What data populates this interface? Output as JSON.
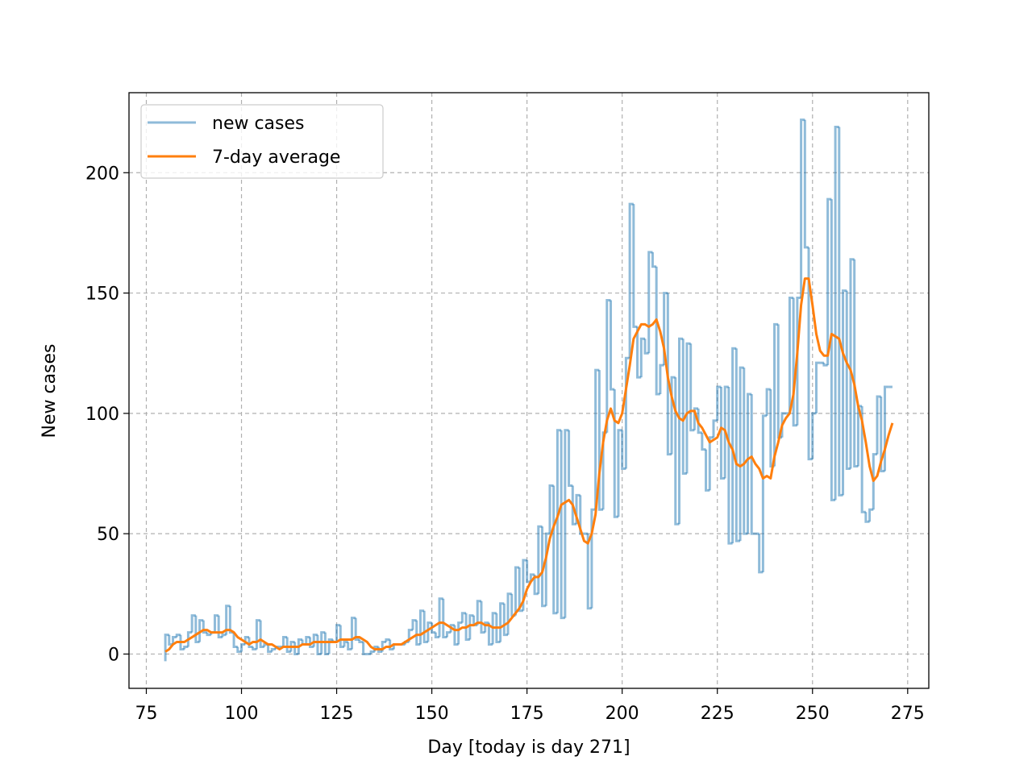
{
  "chart_data": {
    "type": "step-line",
    "xlabel": "Day [today is day 271]",
    "ylabel": "New cases",
    "x": [
      80,
      81,
      82,
      83,
      84,
      85,
      86,
      87,
      88,
      89,
      90,
      91,
      92,
      93,
      94,
      95,
      96,
      97,
      98,
      99,
      100,
      101,
      102,
      103,
      104,
      105,
      106,
      107,
      108,
      109,
      110,
      111,
      112,
      113,
      114,
      115,
      116,
      117,
      118,
      119,
      120,
      121,
      122,
      123,
      124,
      125,
      126,
      127,
      128,
      129,
      130,
      131,
      132,
      133,
      134,
      135,
      136,
      137,
      138,
      139,
      140,
      141,
      142,
      143,
      144,
      145,
      146,
      147,
      148,
      149,
      150,
      151,
      152,
      153,
      154,
      155,
      156,
      157,
      158,
      159,
      160,
      161,
      162,
      163,
      164,
      165,
      166,
      167,
      168,
      169,
      170,
      171,
      172,
      173,
      174,
      175,
      176,
      177,
      178,
      179,
      180,
      181,
      182,
      183,
      184,
      185,
      186,
      187,
      188,
      189,
      190,
      191,
      192,
      193,
      194,
      195,
      196,
      197,
      198,
      199,
      200,
      201,
      202,
      203,
      204,
      205,
      206,
      207,
      208,
      209,
      210,
      211,
      212,
      213,
      214,
      215,
      216,
      217,
      218,
      219,
      220,
      221,
      222,
      223,
      224,
      225,
      226,
      227,
      228,
      229,
      230,
      231,
      232,
      233,
      234,
      235,
      236,
      237,
      238,
      239,
      240,
      241,
      242,
      243,
      244,
      245,
      246,
      247,
      248,
      249,
      250,
      251,
      252,
      253,
      254,
      255,
      256,
      257,
      258,
      259,
      260,
      261,
      262,
      263,
      264,
      265,
      266,
      267,
      268,
      269,
      270,
      271
    ],
    "series": [
      {
        "name": "new cases",
        "color": "#1f77b4",
        "alpha": 0.5,
        "style": "step",
        "values": [
          -3,
          8,
          4,
          7,
          8,
          2,
          3,
          9,
          16,
          5,
          14,
          9,
          8,
          9,
          16,
          7,
          8,
          20,
          9,
          3,
          1,
          4,
          7,
          3,
          2,
          14,
          3,
          4,
          1,
          2,
          3,
          3,
          7,
          1,
          5,
          0,
          6,
          4,
          7,
          3,
          8,
          0,
          9,
          0,
          6,
          5,
          12,
          3,
          5,
          2,
          15,
          6,
          5,
          0,
          0,
          1,
          3,
          1,
          5,
          6,
          2,
          4,
          4,
          4,
          5,
          10,
          14,
          4,
          18,
          5,
          13,
          9,
          7,
          23,
          7,
          9,
          12,
          4,
          13,
          17,
          6,
          16,
          12,
          22,
          9,
          13,
          4,
          17,
          5,
          21,
          8,
          25,
          16,
          36,
          18,
          39,
          30,
          33,
          25,
          53,
          20,
          50,
          70,
          17,
          93,
          15,
          93,
          70,
          54,
          66,
          50,
          50,
          19,
          60,
          118,
          60,
          92,
          147,
          110,
          57,
          93,
          77,
          123,
          187,
          136,
          115,
          131,
          125,
          167,
          161,
          108,
          120,
          150,
          83,
          115,
          54,
          131,
          75,
          129,
          93,
          102,
          92,
          85,
          68,
          90,
          97,
          111,
          73,
          111,
          46,
          127,
          47,
          119,
          50,
          108,
          50,
          50,
          34,
          99,
          110,
          78,
          137,
          90,
          100,
          100,
          148,
          95,
          148,
          222,
          169,
          81,
          100,
          121,
          121,
          120,
          189,
          64,
          219,
          66,
          151,
          77,
          164,
          78,
          103,
          59,
          55,
          60,
          83,
          107,
          76,
          111,
          111
        ]
      },
      {
        "name": "7-day average",
        "color": "#ff7f0e",
        "alpha": 1,
        "style": "line",
        "values": [
          1,
          2,
          4,
          5,
          5,
          5,
          6,
          7,
          8,
          9,
          10,
          10,
          9,
          9,
          9,
          9,
          10,
          10,
          9,
          7,
          6,
          5,
          4,
          5,
          5,
          6,
          5,
          4,
          4,
          3,
          2,
          3,
          3,
          3,
          3,
          3,
          4,
          4,
          4,
          5,
          5,
          5,
          5,
          5,
          5,
          5,
          6,
          6,
          6,
          6,
          7,
          7,
          6,
          5,
          3,
          2,
          2,
          2,
          3,
          3,
          4,
          4,
          4,
          5,
          6,
          7,
          8,
          8,
          9,
          10,
          11,
          12,
          13,
          13,
          12,
          11,
          10,
          10,
          11,
          11,
          12,
          12,
          13,
          13,
          12,
          12,
          11,
          11,
          11,
          12,
          13,
          15,
          17,
          19,
          22,
          27,
          30,
          32,
          32,
          34,
          40,
          48,
          53,
          57,
          62,
          63,
          64,
          62,
          57,
          52,
          47,
          46,
          50,
          58,
          75,
          88,
          97,
          102,
          97,
          96,
          100,
          110,
          120,
          131,
          134,
          137,
          137,
          136,
          137,
          139,
          134,
          127,
          115,
          107,
          101,
          98,
          97,
          100,
          101,
          101,
          96,
          94,
          91,
          88,
          89,
          90,
          94,
          93,
          88,
          85,
          79,
          78,
          79,
          81,
          82,
          79,
          77,
          73,
          74,
          73,
          82,
          88,
          95,
          98,
          100,
          108,
          125,
          145,
          156,
          156,
          145,
          133,
          126,
          124,
          124,
          133,
          132,
          131,
          125,
          121,
          118,
          112,
          103,
          97,
          88,
          78,
          72,
          74,
          80,
          85,
          91,
          96
        ]
      }
    ],
    "xlim": [
      70.45,
      280.55
    ],
    "ylim": [
      -14.25,
      233.25
    ],
    "xticks": [
      75,
      100,
      125,
      150,
      175,
      200,
      225,
      250,
      275
    ],
    "yticks": [
      0,
      50,
      100,
      150,
      200
    ],
    "grid": true,
    "legend": "upper left"
  }
}
